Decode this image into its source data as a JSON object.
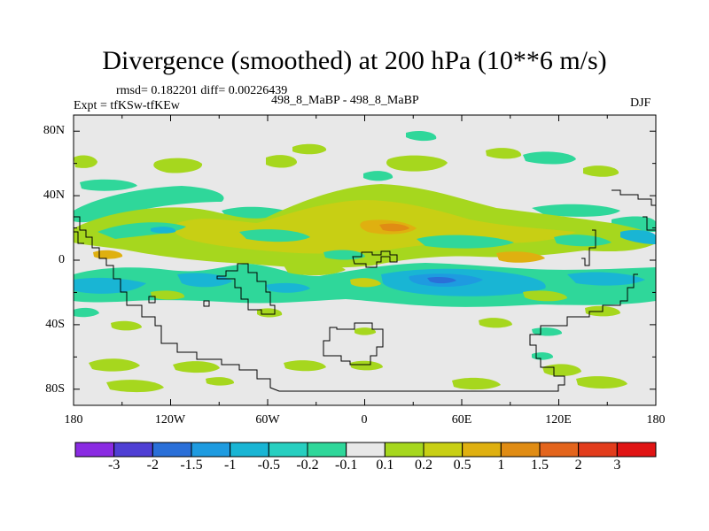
{
  "chart_data": {
    "type": "heatmap",
    "title": "Divergence (smoothed) at 200 hPa (10**6 m/s)",
    "stats_text": "rmsd= 0.182201 diff= 0.00226439",
    "experiment_text": "Expt = tfKSw-tfKEw",
    "case_text": "498_8_MaBP - 498_8_MaBP",
    "season": "DJF",
    "x_ticks": [
      "180",
      "120W",
      "60W",
      "0",
      "60E",
      "120E",
      "180"
    ],
    "y_ticks": [
      "80N",
      "40N",
      "0",
      "40S",
      "80S"
    ],
    "x_range": [
      -180,
      180
    ],
    "y_range": [
      -90,
      90
    ],
    "colorbar": {
      "labels": [
        "-3",
        "-2",
        "-1.5",
        "-1",
        "-0.5",
        "-0.2",
        "-0.1",
        "0.1",
        "0.2",
        "0.5",
        "1",
        "1.5",
        "2",
        "3"
      ],
      "colors": [
        "#8a2be2",
        "#4f3fd4",
        "#2a6fd8",
        "#1e9be0",
        "#19b5d4",
        "#27cfc0",
        "#2fd79a",
        "#e8e8e8",
        "#a6d71e",
        "#c8cf14",
        "#dfb010",
        "#e08c14",
        "#e3641c",
        "#e23c1c",
        "#e01414"
      ]
    },
    "features": [
      {
        "name": "negative divergence band south of equator",
        "lon_range": [
          -170,
          170
        ],
        "lat_range": [
          -25,
          -5
        ],
        "level": "-0.2 to -1"
      },
      {
        "name": "positive divergence band north of equator",
        "lon_range": [
          -150,
          150
        ],
        "lat_range": [
          5,
          35
        ],
        "level": "0.2 to 1"
      },
      {
        "name": "strongest convergence over Indian Ocean",
        "lon_range": [
          40,
          100
        ],
        "lat_range": [
          -20,
          -10
        ],
        "level": "-1"
      },
      {
        "name": "strongest divergence over North Africa/Arabia",
        "lon_range": [
          0,
          40
        ],
        "lat_range": [
          15,
          25
        ],
        "level": "1"
      }
    ]
  }
}
